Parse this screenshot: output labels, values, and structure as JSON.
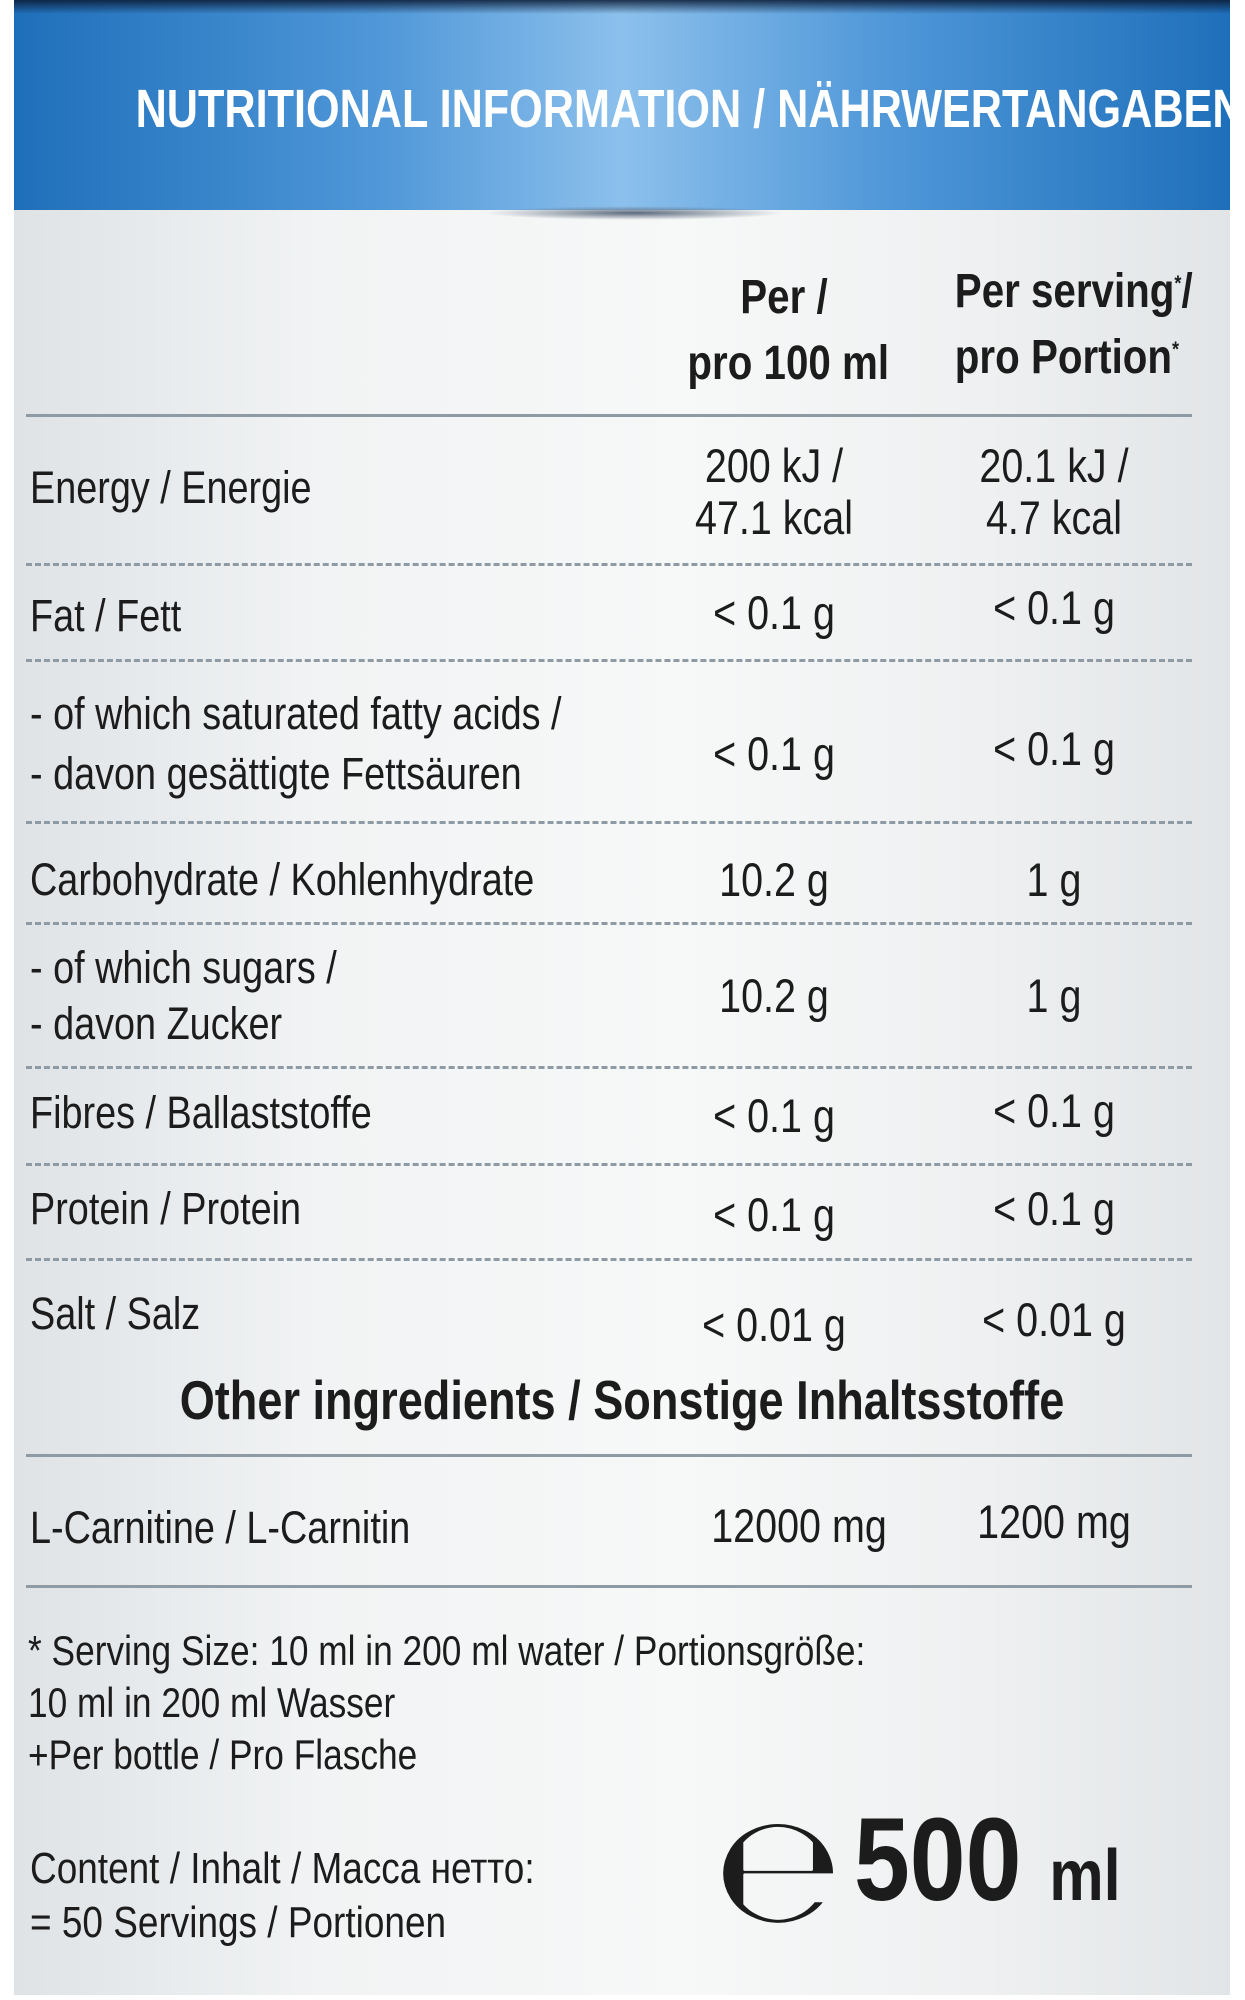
{
  "header": {
    "title": "NUTRITIONAL INFORMATION / NÄHRWERTANGABEN"
  },
  "columns": {
    "per_100_line1": "Per /",
    "per_100_line2": "pro 100 ml",
    "per_serving_line1": "Per serving",
    "per_serving_line2": "pro Portion",
    "serving_mark": "*",
    "serving_slash": "/"
  },
  "rows": [
    {
      "label": "Energy / Energie",
      "per100": "200 kJ /",
      "per100_b": "47.1 kcal",
      "serving": "20.1 kJ /",
      "serving_b": "4.7 kcal"
    },
    {
      "label": "Fat / Fett",
      "per100": "< 0.1 g",
      "serving": "< 0.1 g"
    },
    {
      "label": "- of which saturated fatty acids /",
      "label_b": "- davon gesättigte Fettsäuren",
      "per100": "< 0.1 g",
      "serving": "< 0.1 g"
    },
    {
      "label": "Carbohydrate / Kohlenhydrate",
      "per100": "10.2 g",
      "serving": "1 g"
    },
    {
      "label": "- of which sugars /",
      "label_b": "- davon Zucker",
      "per100": "10.2 g",
      "serving": "1 g"
    },
    {
      "label": "Fibres / Ballaststoffe",
      "per100": "< 0.1 g",
      "serving": "< 0.1 g"
    },
    {
      "label": "Protein / Protein",
      "per100": "< 0.1 g",
      "serving": "< 0.1 g"
    },
    {
      "label": "Salt / Salz",
      "per100": "< 0.01 g",
      "serving": "< 0.01 g"
    }
  ],
  "other": {
    "title": "Other ingredients / Sonstige Inhaltsstoffe",
    "label": "L-Carnitine / L-Carnitin",
    "per100": "12000 mg",
    "serving": "1200 mg"
  },
  "footnotes": {
    "serving_mark": "*",
    "serving_line1": "Serving Size: 10 ml in 200 ml water / Portionsgröße:",
    "serving_line2": "10 ml in 200 ml Wasser",
    "bottle_mark": "+",
    "bottle_line": "Per bottle / Pro Flasche"
  },
  "content": {
    "line1": "Content / Inhalt / Macca нетто:",
    "line2": "= 50 Servings / Portionen",
    "estimated_mark": "℮",
    "volume_number": "500",
    "volume_unit": "ml"
  }
}
